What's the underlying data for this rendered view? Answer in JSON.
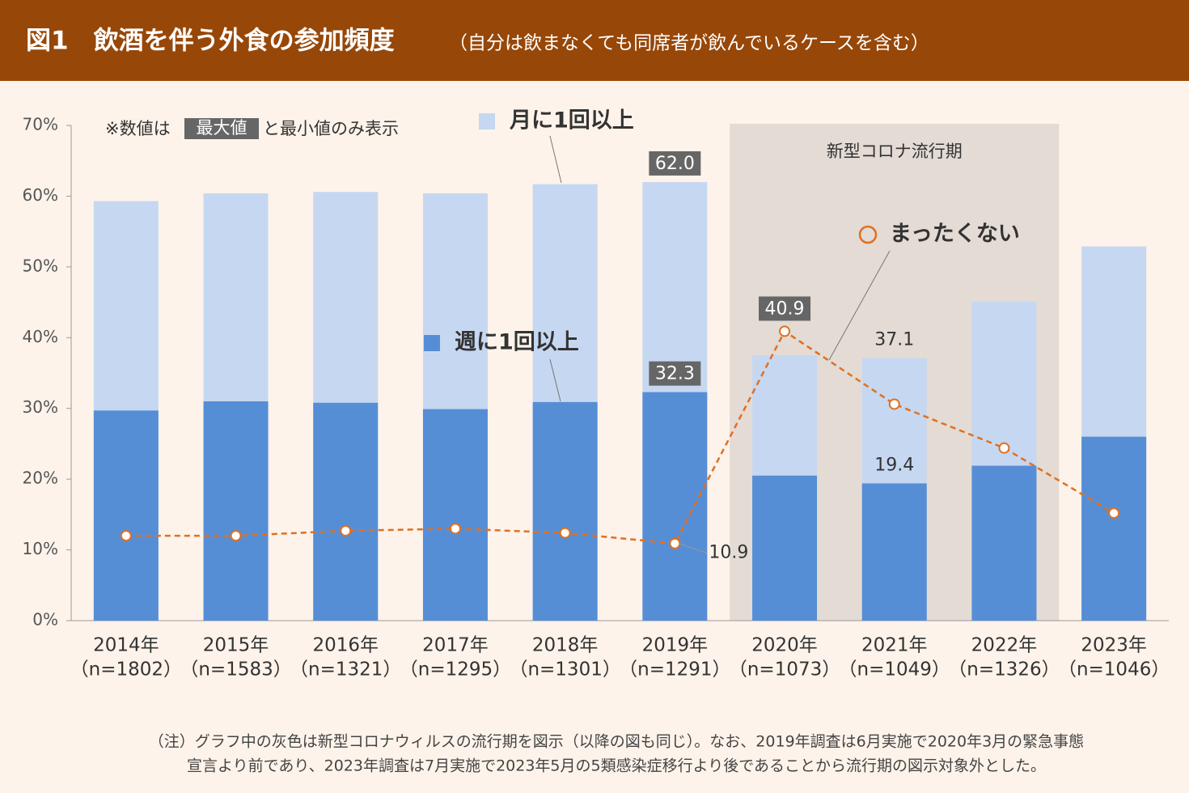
{
  "chart_data": {
    "type": "bar",
    "title": "図1　飲酒を伴う外食の参加頻度",
    "subtitle": "（自分は飲まなくても同席者が飲んでいるケースを含む）",
    "note_parts": [
      "※数値は",
      "最大値",
      "と最小値のみ表示"
    ],
    "shaded_range": [
      6,
      8
    ],
    "shaded_label": "新型コロナ流行期",
    "categories": [
      "2014年",
      "2015年",
      "2016年",
      "2017年",
      "2018年",
      "2019年",
      "2020年",
      "2021年",
      "2022年",
      "2023年"
    ],
    "sample_sizes": [
      "（n=1802）",
      "（n=1583）",
      "（n=1321）",
      "（n=1295）",
      "（n=1301）",
      "（n=1291）",
      "（n=1073）",
      "（n=1049）",
      "（n=1326）",
      "（n=1046）"
    ],
    "series": [
      {
        "name": "月に1回以上",
        "type": "bar",
        "color": "#c6d8f1",
        "values": [
          59.3,
          60.4,
          60.6,
          60.4,
          61.7,
          62.0,
          37.5,
          37.1,
          45.1,
          52.9
        ],
        "value_labels": [
          null,
          null,
          null,
          null,
          null,
          "62.0",
          null,
          "37.1",
          null,
          null
        ]
      },
      {
        "name": "週に1回以上",
        "type": "bar",
        "color": "#568ed6",
        "values": [
          29.7,
          31.0,
          30.8,
          29.9,
          30.9,
          32.3,
          20.5,
          19.4,
          21.9,
          26.0
        ],
        "value_labels": [
          null,
          null,
          null,
          null,
          null,
          "32.3",
          null,
          "19.4",
          null,
          null
        ]
      },
      {
        "name": "まったくない",
        "type": "line",
        "color": "#e07020",
        "values": [
          12.0,
          12.0,
          12.7,
          13.0,
          12.4,
          10.9,
          40.9,
          30.6,
          24.4,
          15.2
        ],
        "value_labels": [
          null,
          null,
          null,
          null,
          null,
          "10.9",
          "40.9",
          null,
          null,
          null
        ]
      }
    ],
    "ylim": [
      0,
      70
    ],
    "yticks": [
      {
        "value": 0,
        "label": "0%"
      },
      {
        "value": 10,
        "label": "10%"
      },
      {
        "value": 20,
        "label": "20%"
      },
      {
        "value": 30,
        "label": "30%"
      },
      {
        "value": 40,
        "label": "40%"
      },
      {
        "value": 50,
        "label": "50%"
      },
      {
        "value": 60,
        "label": "60%"
      },
      {
        "value": 70,
        "label": "70%"
      }
    ],
    "footnote": [
      "（注）グラフ中の灰色は新型コロナウィルスの流行期を図示（以降の図も同じ）。なお、2019年調査は6月実施で2020年3月の緊急事態",
      "宣言より前であり、2023年調査は7月実施で2023年5月の5類感染症移行より後であることから流行期の図示対象外とした。"
    ]
  }
}
